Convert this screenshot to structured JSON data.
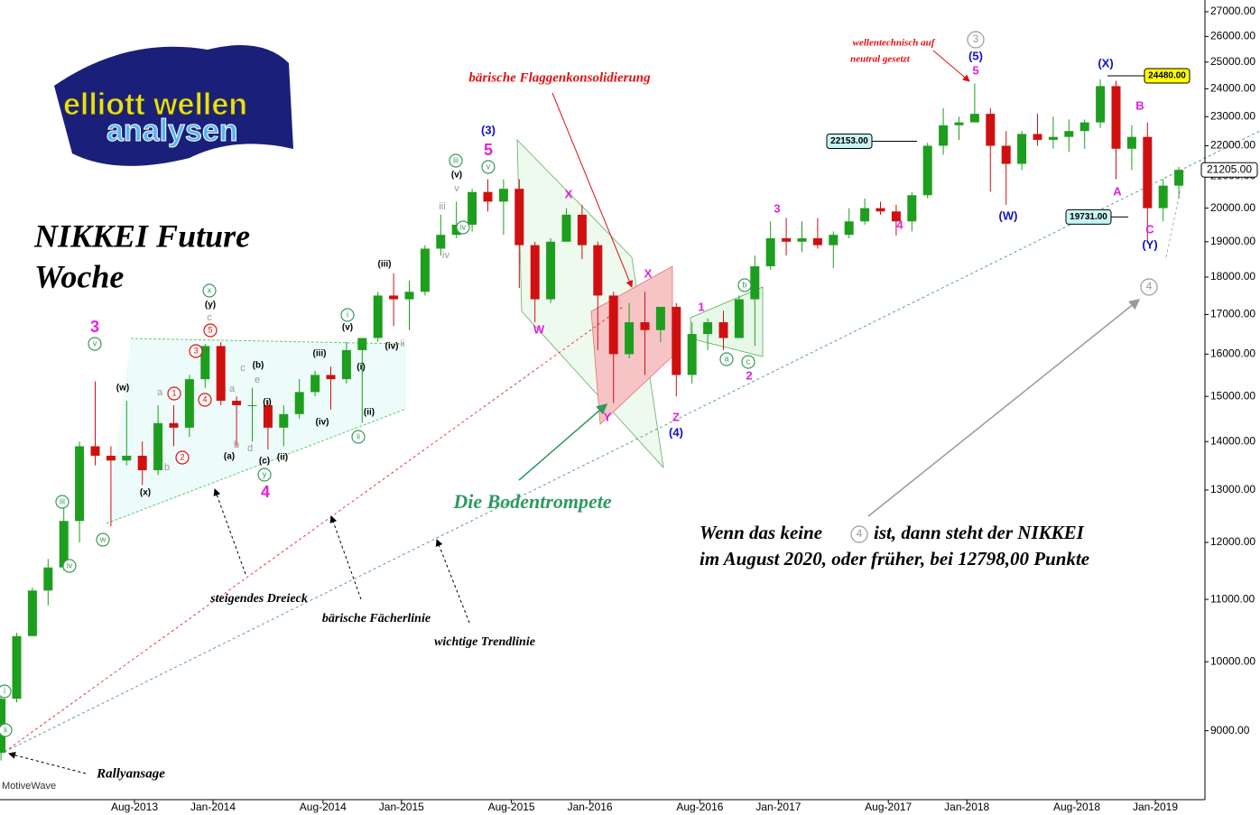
{
  "logo": {
    "line1": "elliott wellen",
    "line2": "analysen"
  },
  "chart_data": {
    "type": "candlestick",
    "title": "NIKKEI Future",
    "subtitle": "Woche",
    "yscale": "log",
    "ylim": [
      8100,
      27300
    ],
    "yticks": [
      {
        "value": 9000,
        "label": "9000.00"
      },
      {
        "value": 10000,
        "label": "10000.00"
      },
      {
        "value": 11000,
        "label": "11000.00"
      },
      {
        "value": 12000,
        "label": "12000.00"
      },
      {
        "value": 13000,
        "label": "13000.00"
      },
      {
        "value": 14000,
        "label": "14000.00"
      },
      {
        "value": 15000,
        "label": "15000.00"
      },
      {
        "value": 16000,
        "label": "16000.00"
      },
      {
        "value": 17000,
        "label": "17000.00"
      },
      {
        "value": 18000,
        "label": "18000.00"
      },
      {
        "value": 19000,
        "label": "19000.00"
      },
      {
        "value": 20000,
        "label": "20000.00"
      },
      {
        "value": 21000,
        "label": "21000.00"
      },
      {
        "value": 22000,
        "label": "22000.00"
      },
      {
        "value": 23000,
        "label": "23000.00"
      },
      {
        "value": 24000,
        "label": "24000.00"
      },
      {
        "value": 25000,
        "label": "25000.00"
      },
      {
        "value": 26000,
        "label": "26000.00"
      },
      {
        "value": 27000,
        "label": "27000.00"
      }
    ],
    "xticks": [
      {
        "value": "2013-08",
        "label": "Aug-2013"
      },
      {
        "value": "2014-01",
        "label": "Jan-2014"
      },
      {
        "value": "2014-08",
        "label": "Aug-2014"
      },
      {
        "value": "2015-01",
        "label": "Jan-2015"
      },
      {
        "value": "2015-08",
        "label": "Aug-2015"
      },
      {
        "value": "2016-01",
        "label": "Jan-2016"
      },
      {
        "value": "2016-08",
        "label": "Aug-2016"
      },
      {
        "value": "2017-01",
        "label": "Jan-2017"
      },
      {
        "value": "2017-08",
        "label": "Aug-2017"
      },
      {
        "value": "2018-01",
        "label": "Jan-2018"
      },
      {
        "value": "2018-08",
        "label": "Aug-2018"
      },
      {
        "value": "2019-01",
        "label": "Jan-2019"
      }
    ],
    "up_color": "#1e9e1e",
    "down_color": "#d01010",
    "x": [
      "2012-11",
      "2012-12",
      "2013-01",
      "2013-02",
      "2013-03",
      "2013-04",
      "2013-05",
      "2013-06",
      "2013-07",
      "2013-08",
      "2013-09",
      "2013-10",
      "2013-11",
      "2013-12",
      "2014-01",
      "2014-02",
      "2014-03",
      "2014-04",
      "2014-05",
      "2014-06",
      "2014-07",
      "2014-08",
      "2014-09",
      "2014-10",
      "2014-11",
      "2014-12",
      "2015-01",
      "2015-02",
      "2015-03",
      "2015-04",
      "2015-05",
      "2015-06",
      "2015-07",
      "2015-08",
      "2015-09",
      "2015-10",
      "2015-11",
      "2015-12",
      "2016-01",
      "2016-02",
      "2016-03",
      "2016-04",
      "2016-05",
      "2016-06",
      "2016-07",
      "2016-08",
      "2016-09",
      "2016-10",
      "2016-11",
      "2016-12",
      "2017-01",
      "2017-02",
      "2017-03",
      "2017-04",
      "2017-05",
      "2017-06",
      "2017-07",
      "2017-08",
      "2017-09",
      "2017-10",
      "2017-11",
      "2017-12",
      "2018-01",
      "2018-02",
      "2018-03",
      "2018-04",
      "2018-05",
      "2018-06",
      "2018-07",
      "2018-08",
      "2018-09",
      "2018-10",
      "2018-11",
      "2018-12",
      "2019-01",
      "2019-02"
    ],
    "open": [
      8700,
      9450,
      10400,
      11150,
      11550,
      12400,
      13900,
      13700,
      13600,
      13700,
      13400,
      14400,
      14300,
      15400,
      16200,
      14900,
      14800,
      14800,
      14300,
      14600,
      15100,
      15500,
      15400,
      16100,
      16400,
      17500,
      17400,
      17600,
      18800,
      19200,
      19500,
      20500,
      20200,
      20600,
      18900,
      17400,
      19000,
      19800,
      18900,
      17500,
      16000,
      16800,
      16600,
      17200,
      15500,
      16500,
      16800,
      16400,
      17400,
      18300,
      19100,
      19000,
      19100,
      18900,
      19200,
      19600,
      20000,
      19900,
      19600,
      20400,
      22000,
      22700,
      22800,
      23100,
      22000,
      21400,
      22400,
      22200,
      22300,
      22500,
      22800,
      24100,
      21900,
      22300,
      20000,
      20700
    ],
    "high": [
      9500,
      10450,
      11200,
      11700,
      12700,
      14000,
      15350,
      13900,
      14900,
      14000,
      14800,
      14800,
      15500,
      16250,
      16300,
      15000,
      15200,
      14900,
      14800,
      15400,
      15600,
      15700,
      16300,
      16400,
      17600,
      18100,
      17900,
      18900,
      19800,
      20200,
      20600,
      20900,
      20900,
      20900,
      19000,
      19100,
      20000,
      20100,
      19000,
      17600,
      17300,
      17600,
      17200,
      17300,
      16800,
      16900,
      17100,
      17500,
      18600,
      19600,
      19700,
      19600,
      19700,
      19300,
      20000,
      20300,
      20200,
      20100,
      20500,
      22100,
      23300,
      23000,
      24200,
      23300,
      22500,
      22500,
      23100,
      23000,
      22900,
      22900,
      24350,
      24300,
      22700,
      22800,
      20900,
      21300
    ],
    "low": [
      8600,
      9400,
      10400,
      10900,
      11500,
      12000,
      13500,
      12300,
      13500,
      13100,
      13300,
      13900,
      14100,
      15200,
      14800,
      13900,
      14000,
      13830,
      13900,
      14500,
      15000,
      14700,
      15300,
      14410,
      16300,
      16700,
      16600,
      17500,
      18600,
      19100,
      19300,
      19900,
      19200,
      17700,
      16800,
      17300,
      19000,
      18500,
      16100,
      14850,
      15900,
      15500,
      16300,
      15000,
      15300,
      16100,
      16100,
      16400,
      16200,
      18200,
      18600,
      18700,
      18800,
      18250,
      19100,
      19500,
      19800,
      19180,
      19300,
      20300,
      21700,
      22200,
      22800,
      20510,
      20100,
      21200,
      22000,
      21900,
      21800,
      21900,
      22600,
      20900,
      21200,
      18970,
      19600,
      20300
    ],
    "close": [
      9450,
      10400,
      11150,
      11550,
      12400,
      13900,
      13700,
      13600,
      13700,
      13400,
      14400,
      14300,
      15400,
      16200,
      14900,
      14800,
      14800,
      14300,
      14600,
      15100,
      15500,
      15400,
      16100,
      16400,
      17500,
      17400,
      17600,
      18800,
      19200,
      19500,
      20500,
      20200,
      20600,
      18900,
      17400,
      19000,
      19800,
      18900,
      17500,
      16000,
      16800,
      16600,
      17200,
      15500,
      16500,
      16800,
      16400,
      17400,
      18300,
      19100,
      19000,
      19100,
      18900,
      19200,
      19600,
      20000,
      19900,
      19600,
      20400,
      22000,
      22700,
      22800,
      23100,
      22000,
      21400,
      22400,
      22200,
      22300,
      22500,
      22800,
      24100,
      21900,
      22300,
      20000,
      20700,
      21205
    ],
    "price_labels": [
      {
        "value": 24480,
        "label": "24480.00",
        "color": "#ffff00"
      },
      {
        "value": 22153,
        "label": "22153.00",
        "color": "#c8f4f4"
      },
      {
        "value": 19731,
        "label": "19731.00",
        "color": "#c8f4f4"
      },
      {
        "value": 21205,
        "label": "21205.00",
        "color": "#ffffff"
      }
    ],
    "annotations": [
      {
        "text": "bärische Flaggenkonsolidierung",
        "color": "#e01010"
      },
      {
        "text": "wellentechnisch auf",
        "color": "#e01010"
      },
      {
        "text": "neutral gesetzt",
        "color": "#e01010"
      },
      {
        "text": "Die Bodentrompete",
        "color": "#2e9a5e"
      },
      {
        "text": "Wenn das keine",
        "color": "#000000"
      },
      {
        "text": "4",
        "color": "#999999",
        "circle": true
      },
      {
        "text": "ist, dann steht der NIKKEI",
        "color": "#000000"
      },
      {
        "text": "im August 2020, oder früher, bei 12798,00 Punkte",
        "color": "#000000"
      },
      {
        "text": "steigendes Dreieck",
        "color": "#000000"
      },
      {
        "text": "bärische Fächerlinie",
        "color": "#000000"
      },
      {
        "text": "wichtige Trendlinie",
        "color": "#000000"
      },
      {
        "text": "Rallyansage",
        "color": "#000000"
      },
      {
        "text": "MotiveWave",
        "color": "#333333"
      },
      {
        "text": "3",
        "color": "#e020e0"
      },
      {
        "text": "(3)",
        "color": "#1010d0"
      },
      {
        "text": "5",
        "color": "#e020e0"
      },
      {
        "text": "X",
        "color": "#e020e0"
      },
      {
        "text": "W",
        "color": "#e020e0"
      },
      {
        "text": "Y",
        "color": "#e020e0"
      },
      {
        "text": "X",
        "color": "#e020e0"
      },
      {
        "text": "Z",
        "color": "#e020e0"
      },
      {
        "text": "(4)",
        "color": "#1010d0"
      },
      {
        "text": "1",
        "color": "#e020e0"
      },
      {
        "text": "2",
        "color": "#e020e0"
      },
      {
        "text": "3",
        "color": "#e020e0"
      },
      {
        "text": "4",
        "color": "#e020e0"
      },
      {
        "text": "3",
        "color": "#999999",
        "circle": true
      },
      {
        "text": "(5)",
        "color": "#1010d0"
      },
      {
        "text": "5",
        "color": "#e020e0"
      },
      {
        "text": "(W)",
        "color": "#1010d0"
      },
      {
        "text": "(X)",
        "color": "#1010d0"
      },
      {
        "text": "B",
        "color": "#e020e0"
      },
      {
        "text": "A",
        "color": "#e020e0"
      },
      {
        "text": "C",
        "color": "#e020e0"
      },
      {
        "text": "(Y)",
        "color": "#1010d0"
      },
      {
        "text": "4",
        "color": "#999999",
        "circle": true
      },
      {
        "text": "4",
        "color": "#e020e0"
      },
      {
        "text": "v",
        "color": "#3a9a5a",
        "circle": true
      },
      {
        "text": "w",
        "color": "#3a9a5a",
        "circle": true
      },
      {
        "text": "iii",
        "color": "#3a9a5a",
        "circle": true
      },
      {
        "text": "iv",
        "color": "#3a9a5a",
        "circle": true
      },
      {
        "text": "x",
        "color": "#3a9a5a",
        "circle": true
      },
      {
        "text": "y",
        "color": "#3a9a5a",
        "circle": true
      },
      {
        "text": "i",
        "color": "#3a9a5a",
        "circle": true
      },
      {
        "text": "ii",
        "color": "#3a9a5a",
        "circle": true
      },
      {
        "text": "iii",
        "color": "#3a9a5a",
        "circle": true
      },
      {
        "text": "v",
        "color": "#3a9a5a",
        "circle": true
      },
      {
        "text": "iv",
        "color": "#3a9a5a",
        "circle": true
      },
      {
        "text": "a",
        "color": "#3a9a5a",
        "circle": true
      },
      {
        "text": "b",
        "color": "#3a9a5a",
        "circle": true
      },
      {
        "text": "c",
        "color": "#3a9a5a",
        "circle": true
      },
      {
        "text": "i",
        "color": "#3a9a5a",
        "circle": true
      },
      {
        "text": "ii",
        "color": "#3a9a5a",
        "circle": true
      },
      {
        "text": "1",
        "color": "#e01010",
        "circle": true
      },
      {
        "text": "2",
        "color": "#e01010",
        "circle": true
      },
      {
        "text": "3",
        "color": "#e01010",
        "circle": true
      },
      {
        "text": "4",
        "color": "#e01010",
        "circle": true
      },
      {
        "text": "5",
        "color": "#e01010",
        "circle": true
      },
      {
        "text": "(w)",
        "color": "#000000"
      },
      {
        "text": "(x)",
        "color": "#000000"
      },
      {
        "text": "(y)",
        "color": "#000000"
      },
      {
        "text": "(a)",
        "color": "#000000"
      },
      {
        "text": "(b)",
        "color": "#000000"
      },
      {
        "text": "(c)",
        "color": "#000000"
      },
      {
        "text": "(iii)",
        "color": "#000000"
      },
      {
        "text": "(iv)",
        "color": "#000000"
      },
      {
        "text": "(v)",
        "color": "#000000"
      },
      {
        "text": "(iii)",
        "color": "#000000"
      },
      {
        "text": "(iv)",
        "color": "#000000"
      },
      {
        "text": "(ii)",
        "color": "#000000"
      },
      {
        "text": "(i)",
        "color": "#000000"
      },
      {
        "text": "(ii)",
        "color": "#000000"
      },
      {
        "text": "(v)",
        "color": "#000000"
      },
      {
        "text": "(i)",
        "color": "#000000"
      },
      {
        "text": "a",
        "color": "#999999"
      },
      {
        "text": "b",
        "color": "#999999"
      },
      {
        "text": "c",
        "color": "#999999"
      },
      {
        "text": "a",
        "color": "#999999"
      },
      {
        "text": "b",
        "color": "#999999"
      },
      {
        "text": "c",
        "color": "#999999"
      },
      {
        "text": "d",
        "color": "#999999"
      },
      {
        "text": "e",
        "color": "#999999"
      },
      {
        "text": "iii",
        "color": "#999999"
      },
      {
        "text": "v",
        "color": "#999999"
      },
      {
        "text": "iv",
        "color": "#999999"
      },
      {
        "text": "ii",
        "color": "#999999"
      }
    ]
  }
}
